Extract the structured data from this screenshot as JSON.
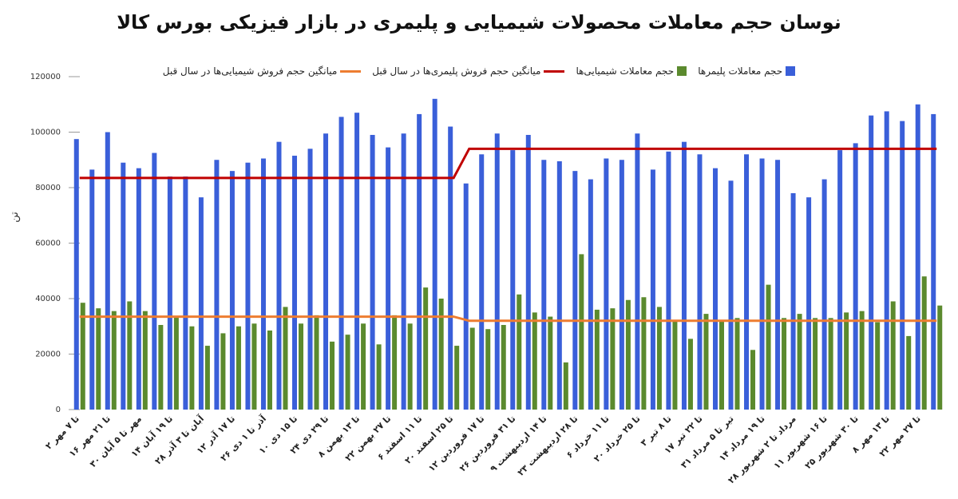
{
  "chart_data": {
    "type": "bar",
    "title": "نوسان حجم معاملات محصولات شیمیایی و پلیمری در بازار فیزیکی بورس کالا",
    "y_label": "تن",
    "categories": [
      "۲ تا ۷ مهر",
      null,
      "۱۶ تا ۲۱ مهر",
      null,
      "۳۰ مهر تا ۵ آبان",
      null,
      "۱۴ تا ۱۹ آبان",
      null,
      "۲۸ آبان تا ۳ آذر",
      null,
      "۱۲ تا ۱۷ آذر",
      null,
      "۲۶ آذر تا ۱ دی",
      null,
      "۱۰ تا ۱۵ دی",
      null,
      "۲۴ تا ۲۹ دی",
      null,
      "۸ تا ۱۳ بهمن",
      null,
      "۲۲ تا ۲۷ بهمن",
      null,
      "۶ تا ۱۱ اسفند",
      null,
      "۲۰ تا ۲۵ اسفند",
      null,
      "۱۲ تا ۱۷ فروردین",
      null,
      "۲۶ تا ۳۱ فروردین",
      null,
      "۹ تا ۱۴ اردیبهشت",
      null,
      "۲۳ تا ۲۸ اردیبهشت",
      null,
      "۶ تا ۱۱ خرداد",
      null,
      "۲۰ تا ۲۵ خرداد",
      null,
      "۳ تا ۸ تیر",
      null,
      "۱۷ تا ۲۲ تیر",
      null,
      "۳۱ تیر تا ۵ مرداد",
      null,
      "۱۴ تا ۱۹ مرداد",
      null,
      "۲۸ مرداد تا ۲ شهریور",
      null,
      "۱۱ تا ۱۶ شهریور",
      null,
      "۲۵ تا ۳۰ شهریور",
      null,
      "۸ تا ۱۳ مهر",
      null,
      "۲۲ تا ۲۷ مهر",
      null
    ],
    "series": [
      {
        "name": "حجم معاملات پلیمرها",
        "color": "#3a5fd9",
        "kind": "bar",
        "values": [
          97500,
          86500,
          100000,
          89000,
          87000,
          92500,
          84000,
          84000,
          76500,
          90000,
          86000,
          89000,
          90500,
          96500,
          91500,
          94000,
          99500,
          105500,
          107000,
          99000,
          94500,
          99500,
          106500,
          112000,
          102000,
          81500,
          92000,
          99500,
          93500,
          99000,
          90000,
          89500,
          86000,
          83000,
          90500,
          90000,
          99500,
          86500,
          93000,
          96500,
          92000,
          87000,
          82500,
          92000,
          90500,
          90000,
          78000,
          76500,
          83000,
          93500,
          96000,
          106000,
          107500,
          104000,
          110000,
          106500
        ]
      },
      {
        "name": "حجم معاملات شیمیایی‌ها",
        "color": "#5b8a2e",
        "kind": "bar",
        "values": [
          38500,
          36500,
          35500,
          39000,
          35500,
          30500,
          33500,
          30000,
          23000,
          27500,
          30000,
          31000,
          28500,
          37000,
          31000,
          34000,
          24500,
          27000,
          31000,
          23500,
          34000,
          31000,
          44000,
          40000,
          23000,
          29500,
          29000,
          30500,
          41500,
          35000,
          33500,
          17000,
          56000,
          36000,
          36500,
          39500,
          40500,
          37000,
          32000,
          25500,
          34500,
          32000,
          33000,
          21500,
          45000,
          33000,
          34500,
          33000,
          33000,
          35000,
          35500,
          31500,
          39000,
          26500,
          48000,
          37500
        ]
      },
      {
        "name": "میانگین حجم فروش پلیمری‌ها در سال قبل",
        "color": "#c00000",
        "kind": "line",
        "values": [
          83500,
          83500,
          83500,
          83500,
          83500,
          83500,
          83500,
          83500,
          83500,
          83500,
          83500,
          83500,
          83500,
          83500,
          83500,
          83500,
          83500,
          83500,
          83500,
          83500,
          83500,
          83500,
          83500,
          83500,
          83500,
          94000,
          94000,
          94000,
          94000,
          94000,
          94000,
          94000,
          94000,
          94000,
          94000,
          94000,
          94000,
          94000,
          94000,
          94000,
          94000,
          94000,
          94000,
          94000,
          94000,
          94000,
          94000,
          94000,
          94000,
          94000,
          94000,
          94000,
          94000,
          94000,
          94000,
          94000
        ]
      },
      {
        "name": "میانگین حجم فروش شیمیایی‌ها در سال قبل",
        "color": "#ed7d31",
        "kind": "line",
        "values": [
          33500,
          33500,
          33500,
          33500,
          33500,
          33500,
          33500,
          33500,
          33500,
          33500,
          33500,
          33500,
          33500,
          33500,
          33500,
          33500,
          33500,
          33500,
          33500,
          33500,
          33500,
          33500,
          33500,
          33500,
          33500,
          32000,
          32000,
          32000,
          32000,
          32000,
          32000,
          32000,
          32000,
          32000,
          32000,
          32000,
          32000,
          32000,
          32000,
          32000,
          32000,
          32000,
          32000,
          32000,
          32000,
          32000,
          32000,
          32000,
          32000,
          32000,
          32000,
          32000,
          32000,
          32000,
          32000,
          32000
        ]
      }
    ],
    "ylim": [
      0,
      120000
    ],
    "yticks": [
      0,
      20000,
      40000,
      60000,
      80000,
      100000,
      120000
    ],
    "grid": false
  }
}
